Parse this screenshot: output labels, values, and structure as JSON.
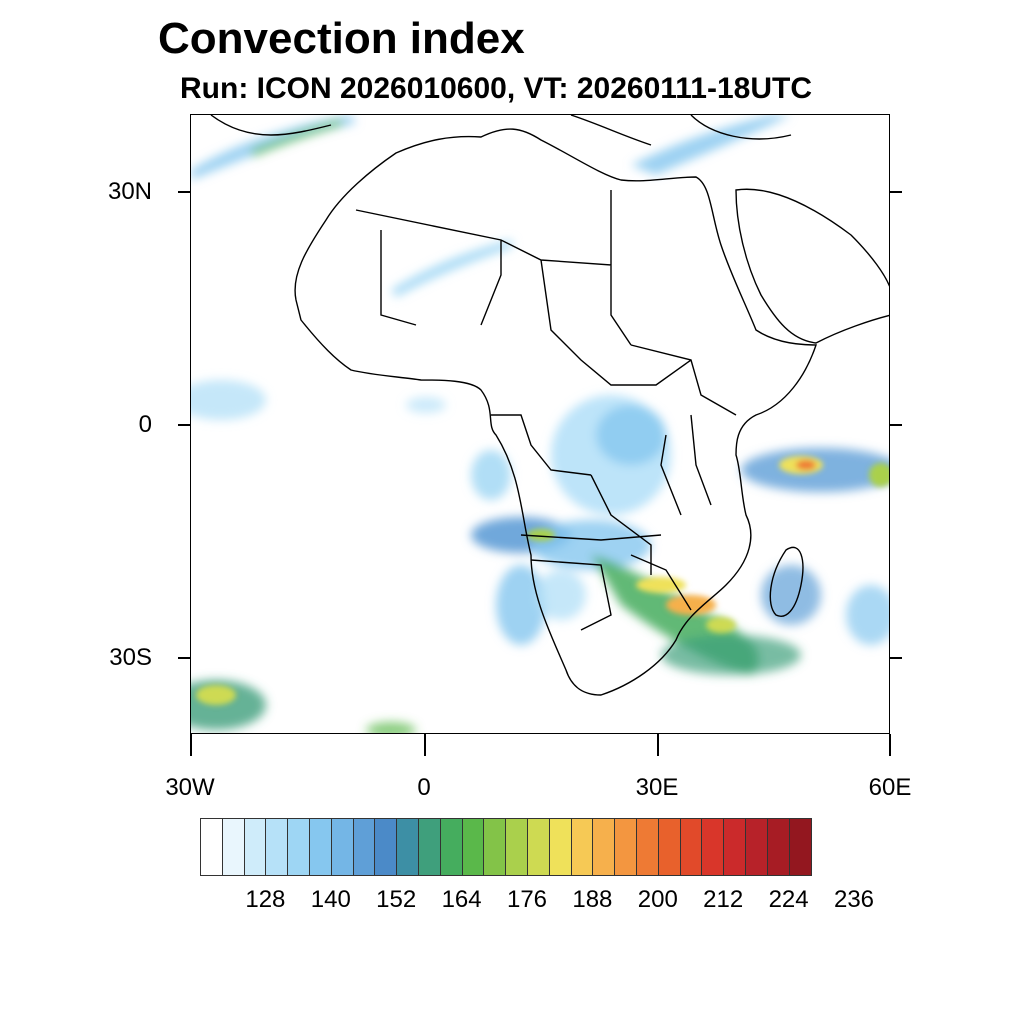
{
  "title": "Convection index",
  "subtitle": "Run: ICON 2026010600,  VT: 20260111-18UTC",
  "axes": {
    "lat_labels": [
      "30N",
      "0",
      "30S"
    ],
    "lon_labels": [
      "30W",
      "0",
      "30E",
      "60E"
    ]
  },
  "colorbar": {
    "colors": [
      "#ffffff",
      "#e9f6fd",
      "#cfecfa",
      "#b6e1f8",
      "#9ed6f4",
      "#86c7ef",
      "#74b6e6",
      "#5f9fd7",
      "#4b8ac8",
      "#3d8fa5",
      "#3f9f7c",
      "#45ad5e",
      "#5ab84a",
      "#83c348",
      "#aad04c",
      "#ceda52",
      "#efe15a",
      "#f6c955",
      "#f6b04c",
      "#f39640",
      "#ee7a34",
      "#e8612c",
      "#e14a2a",
      "#d9362a",
      "#cb2a2b",
      "#b72229",
      "#a71c24",
      "#93171f"
    ],
    "labels": [
      "128",
      "140",
      "152",
      "164",
      "176",
      "188",
      "200",
      "212",
      "224",
      "236"
    ]
  },
  "map_legend": {
    "region": "Africa",
    "field": "Convection index"
  }
}
